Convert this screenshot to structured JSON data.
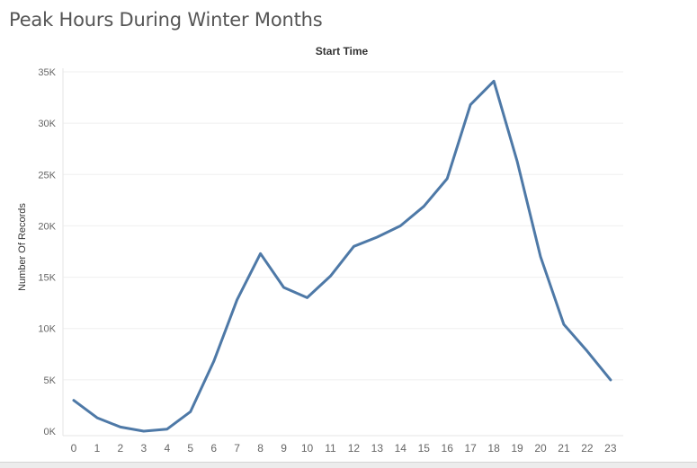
{
  "page_title": "Peak Hours During Winter Months",
  "chart_data": {
    "type": "line",
    "title": "Start Time",
    "xlabel": "",
    "ylabel": "Number Of Records",
    "x": [
      0,
      1,
      2,
      3,
      4,
      5,
      6,
      7,
      8,
      9,
      10,
      11,
      12,
      13,
      14,
      15,
      16,
      17,
      18,
      19,
      20,
      21,
      22,
      23
    ],
    "x_tick_labels": [
      "0",
      "1",
      "2",
      "3",
      "4",
      "5",
      "6",
      "7",
      "8",
      "9",
      "10",
      "11",
      "12",
      "13",
      "14",
      "15",
      "16",
      "17",
      "18",
      "19",
      "20",
      "21",
      "22",
      "23"
    ],
    "series": [
      {
        "values": [
          3000,
          1300,
          400,
          0,
          200,
          1900,
          6800,
          12800,
          17300,
          14000,
          13000,
          15100,
          18000,
          18900,
          20000,
          21900,
          24600,
          31800,
          34100,
          26300,
          17000,
          10400,
          7800,
          5000
        ],
        "color": "#4e79a7"
      }
    ],
    "y_ticks": [
      0,
      5000,
      10000,
      15000,
      20000,
      25000,
      30000,
      35000
    ],
    "y_tick_labels": [
      "0K",
      "5K",
      "10K",
      "15K",
      "20K",
      "25K",
      "30K",
      "35K"
    ],
    "ylim": [
      0,
      35000
    ],
    "grid": true
  }
}
